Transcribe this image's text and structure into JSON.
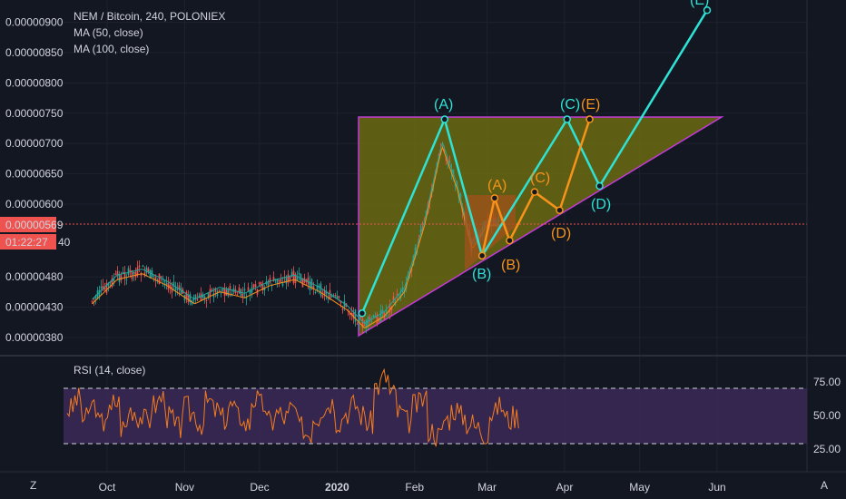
{
  "header": {
    "symbol_line": "NEM / Bitcoin, 240, POLONIEX",
    "ma50": "MA (50, close)",
    "ma100": "MA (100, close)"
  },
  "rsi_label": "RSI (14, close)",
  "price_badge": {
    "value": "0.00000569",
    "countdown": "01:22:27",
    "partial": "40"
  },
  "corner": {
    "left_icon": "Z",
    "right_icon": "A"
  },
  "colors": {
    "background": "#131722",
    "wave_cyan": "#2ee3d6",
    "wave_orange": "#f7931a",
    "triangle_fill": "#6b6b10",
    "triangle_edge": "#c23bd4",
    "price_line": "#ef5350",
    "rsi_band": "#3d2b5a",
    "rsi_line": "#f47c20"
  },
  "chart_data": {
    "type": "line",
    "title": "NEM / Bitcoin, 240, POLONIEX",
    "price_axis": {
      "ticks": [
        "0.00000900",
        "0.00000850",
        "0.00000800",
        "0.00000750",
        "0.00000700",
        "0.00000650",
        "0.00000600",
        "0.00000480",
        "0.00000430",
        "0.00000380"
      ],
      "ylim": [
        3.6e-06,
        9.3e-06
      ],
      "last_price": 5.69e-06
    },
    "time_axis": {
      "ticks": [
        "Oct",
        "Nov",
        "Dec",
        "2020",
        "Feb",
        "Mar",
        "Apr",
        "May",
        "Jun"
      ]
    },
    "price_series": {
      "name": "",
      "x": [
        "2019-09-25",
        "2019-10-05",
        "2019-10-15",
        "2019-10-25",
        "2019-11-05",
        "2019-11-15",
        "2019-11-25",
        "2019-12-05",
        "2019-12-15",
        "2019-12-25",
        "2020-01-05",
        "2020-01-12",
        "2020-01-20",
        "2020-01-28",
        "2020-02-05",
        "2020-02-12",
        "2020-02-18",
        "2020-02-24",
        "2020-03-01",
        "2020-03-08"
      ],
      "y": [
        4.4e-06,
        4.8e-06,
        4.9e-06,
        4.7e-06,
        4.4e-06,
        4.6e-06,
        4.5e-06,
        4.7e-06,
        4.8e-06,
        4.6e-06,
        4.3e-06,
        4e-06,
        4.2e-06,
        4.6e-06,
        5.7e-06,
        7e-06,
        6.3e-06,
        5.3e-06,
        5.7e-06,
        5.7e-06
      ]
    },
    "wave_labels": {
      "cyan": [
        "(A)",
        "(B)",
        "(C)",
        "(D)",
        "(E)"
      ],
      "orange": [
        "(A)",
        "(B)",
        "(C)",
        "(D)",
        "(E)"
      ]
    },
    "cyan_wave": [
      {
        "label": "",
        "date": "2020-01-11",
        "price": 4.2e-06
      },
      {
        "label": "(A)",
        "date": "2020-02-13",
        "price": 7.4e-06
      },
      {
        "label": "(B)",
        "date": "2020-02-28",
        "price": 5.15e-06
      },
      {
        "label": "(C)",
        "date": "2020-04-02",
        "price": 7.4e-06
      },
      {
        "label": "(D)",
        "date": "2020-04-15",
        "price": 6.3e-06
      },
      {
        "label": "(E)",
        "date": "2020-05-28",
        "price": 9.2e-06
      }
    ],
    "orange_wave": [
      {
        "label": "",
        "date": "2020-02-28",
        "price": 5.15e-06
      },
      {
        "label": "(A)",
        "date": "2020-03-04",
        "price": 6.1e-06
      },
      {
        "label": "(B)",
        "date": "2020-03-10",
        "price": 5.4e-06
      },
      {
        "label": "(C)",
        "date": "2020-03-20",
        "price": 6.2e-06
      },
      {
        "label": "(D)",
        "date": "2020-03-30",
        "price": 5.9e-06
      },
      {
        "label": "(E)",
        "date": "2020-04-11",
        "price": 7.4e-06
      }
    ],
    "rsi": {
      "ticks": [
        "75.00",
        "50.00",
        "25.00"
      ],
      "ylim": [
        10,
        90
      ],
      "upper": 70,
      "lower": 30,
      "values": [
        55,
        62,
        48,
        58,
        45,
        52,
        60,
        42,
        55,
        50,
        47,
        58,
        63,
        49,
        41,
        56,
        52,
        45,
        60,
        54,
        48,
        57,
        50,
        44,
        62,
        58,
        46,
        52,
        49,
        55,
        42,
        38,
        50,
        56,
        60,
        47,
        53,
        58,
        51,
        45,
        72,
        78,
        66,
        52,
        46,
        58,
        62,
        40,
        36,
        48,
        55,
        50,
        45,
        42,
        38,
        52,
        57,
        48,
        50
      ]
    }
  }
}
